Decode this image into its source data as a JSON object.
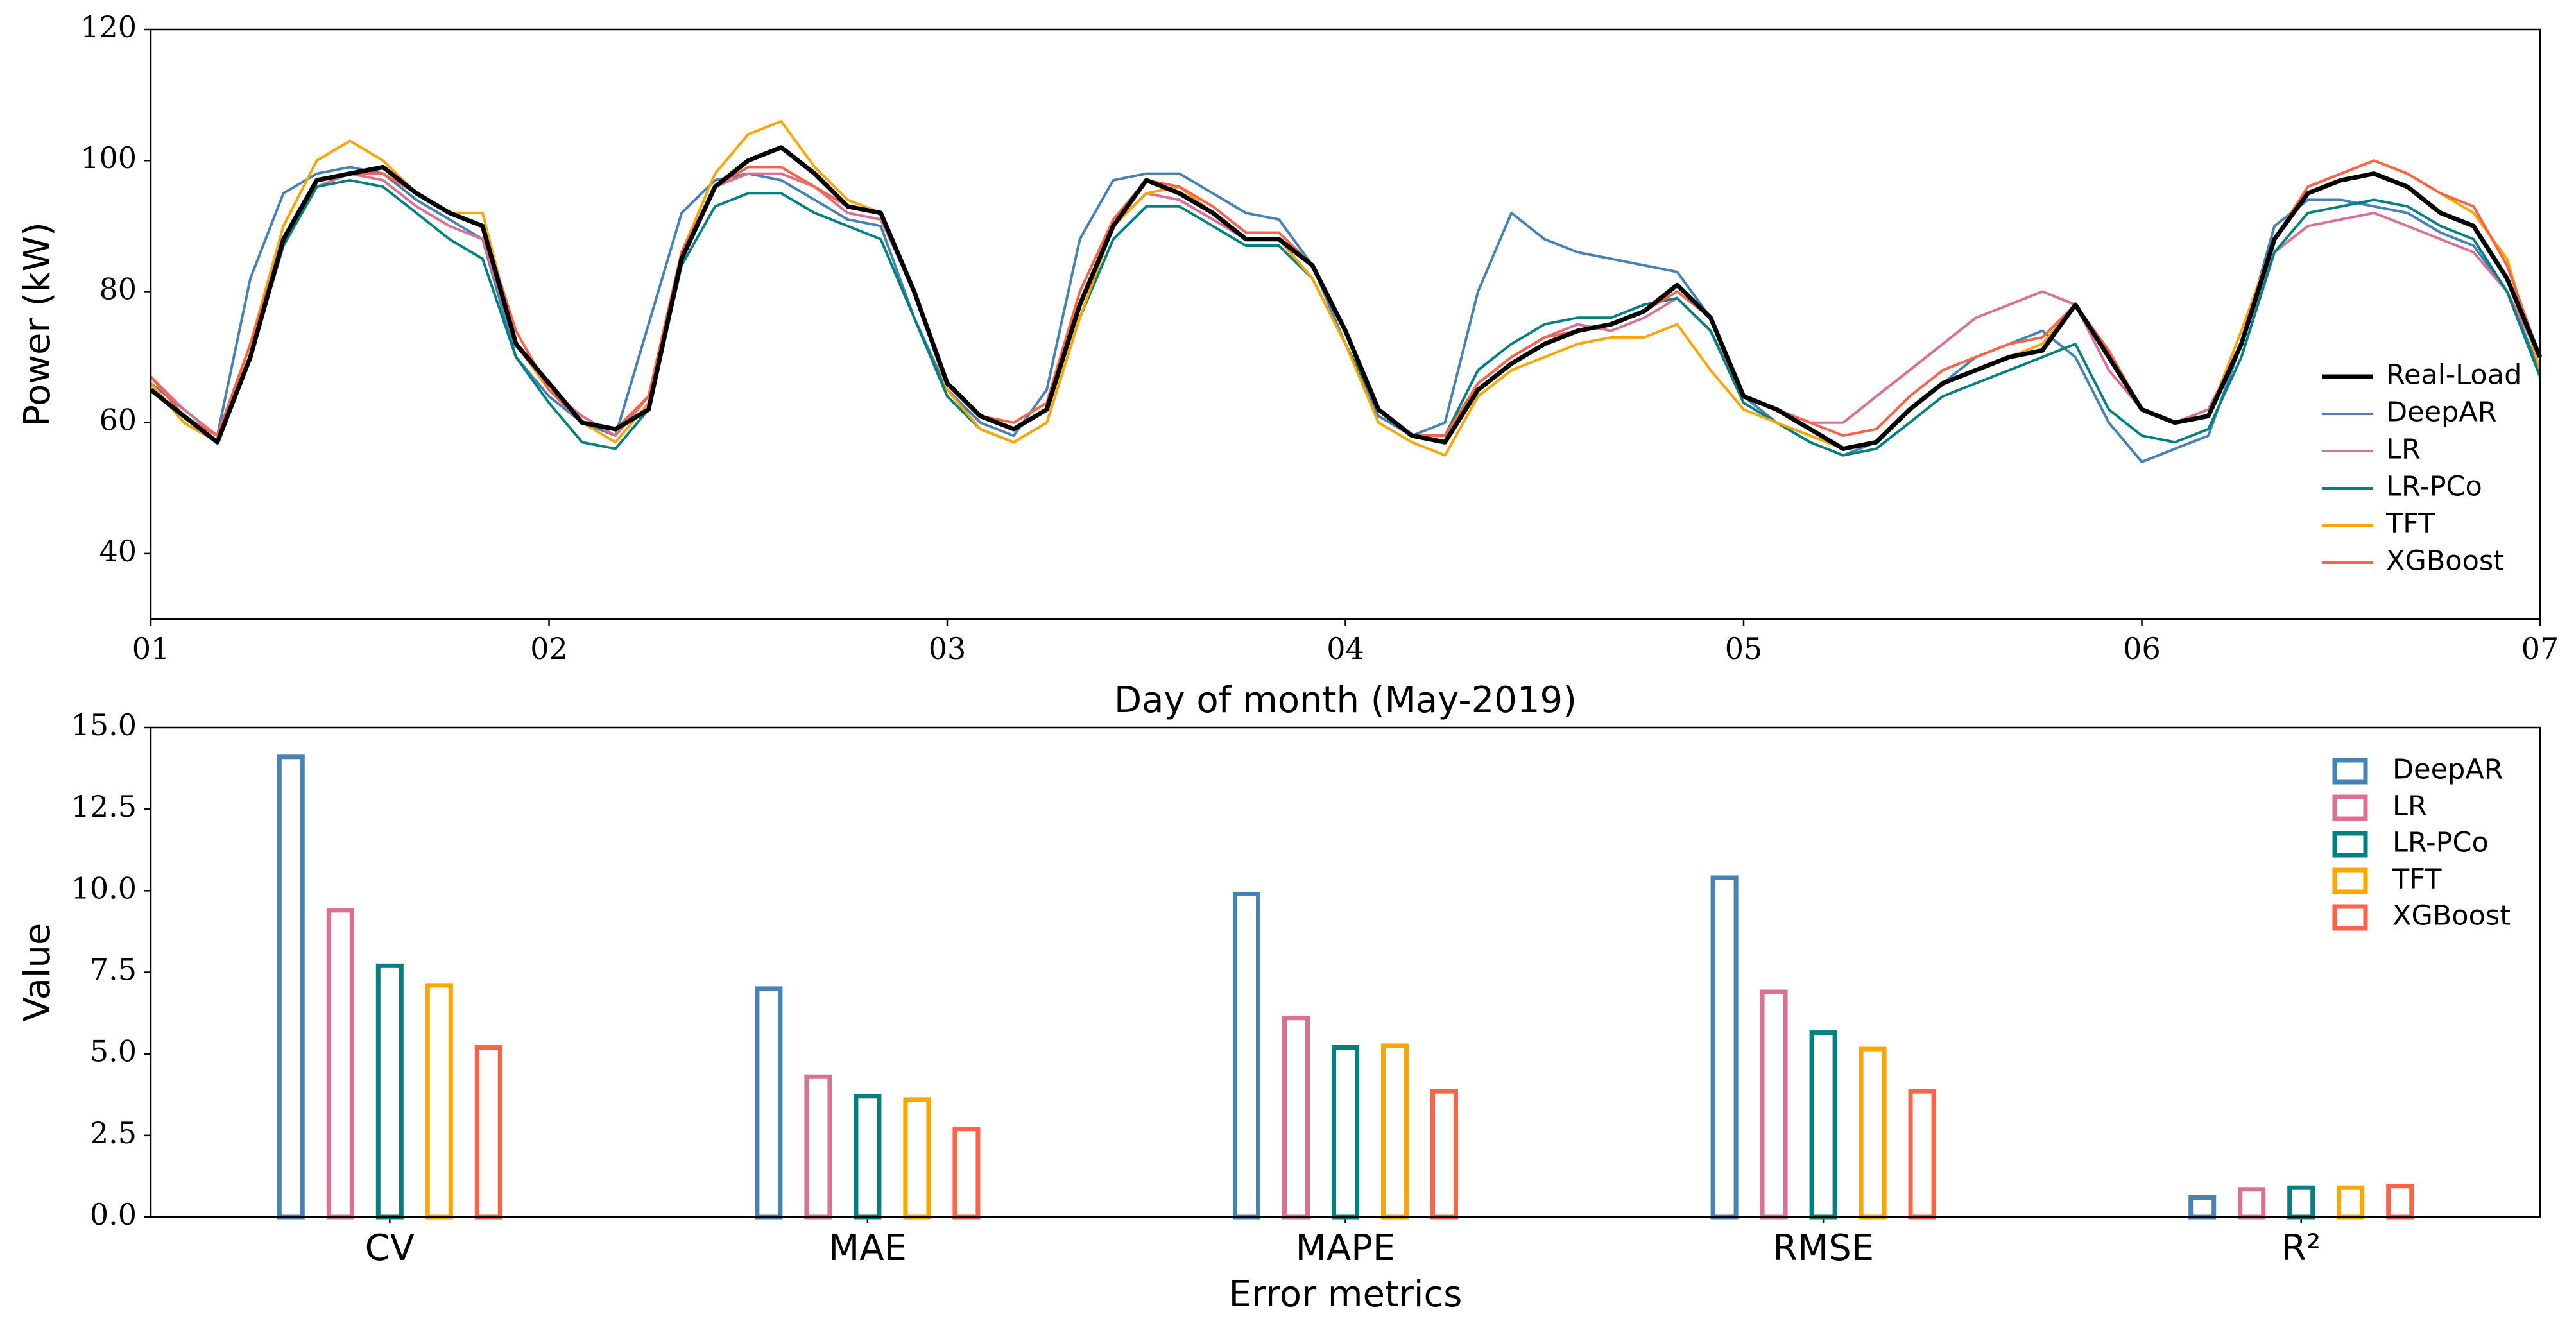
{
  "chart_data": [
    {
      "type": "line",
      "x_label": "Day of month (May-2019)",
      "y_label": "Power (kW)",
      "x": [
        1,
        1.083,
        1.167,
        1.25,
        1.333,
        1.417,
        1.5,
        1.583,
        1.667,
        1.75,
        1.833,
        1.917,
        2,
        2.083,
        2.167,
        2.25,
        2.333,
        2.417,
        2.5,
        2.583,
        2.667,
        2.75,
        2.833,
        2.917,
        3,
        3.083,
        3.167,
        3.25,
        3.333,
        3.417,
        3.5,
        3.583,
        3.667,
        3.75,
        3.833,
        3.917,
        4,
        4.083,
        4.167,
        4.25,
        4.333,
        4.417,
        4.5,
        4.583,
        4.667,
        4.75,
        4.833,
        4.917,
        5,
        5.083,
        5.167,
        5.25,
        5.333,
        5.417,
        5.5,
        5.583,
        5.667,
        5.75,
        5.833,
        5.917,
        6,
        6.083,
        6.167,
        6.25,
        6.333,
        6.417,
        6.5,
        6.583,
        6.667,
        6.75,
        6.833,
        6.917,
        7
      ],
      "series": [
        {
          "name": "Real-Load",
          "color": "#000000",
          "values": [
            65,
            61,
            57,
            70,
            88,
            97,
            98,
            99,
            95,
            92,
            90,
            72,
            66,
            60,
            59,
            62,
            85,
            96,
            100,
            102,
            98,
            93,
            92,
            80,
            66,
            61,
            59,
            62,
            78,
            90,
            97,
            95,
            92,
            88,
            88,
            84,
            74,
            62,
            58,
            57,
            65,
            69,
            72,
            74,
            75,
            77,
            81,
            76,
            64,
            62,
            59,
            56,
            57,
            62,
            66,
            68,
            70,
            71,
            78,
            70,
            62,
            60,
            61,
            72,
            88,
            95,
            97,
            98,
            96,
            92,
            90,
            82,
            70
          ]
        },
        {
          "name": "DeepAR",
          "color": "#4682b4",
          "values": [
            66,
            62,
            58,
            82,
            95,
            98,
            99,
            98,
            94,
            91,
            88,
            70,
            64,
            60,
            58,
            75,
            92,
            97,
            98,
            97,
            94,
            91,
            90,
            76,
            65,
            60,
            58,
            65,
            88,
            97,
            98,
            98,
            95,
            92,
            91,
            84,
            72,
            61,
            58,
            60,
            80,
            92,
            88,
            86,
            85,
            84,
            83,
            76,
            64,
            60,
            57,
            55,
            57,
            62,
            66,
            70,
            72,
            74,
            70,
            60,
            54,
            56,
            58,
            72,
            90,
            94,
            94,
            93,
            92,
            89,
            87,
            80,
            68
          ]
        },
        {
          "name": "LR",
          "color": "#db7093",
          "values": [
            67,
            62,
            58,
            70,
            87,
            96,
            98,
            97,
            93,
            90,
            88,
            72,
            65,
            61,
            58,
            64,
            86,
            96,
            98,
            98,
            96,
            92,
            91,
            80,
            66,
            61,
            59,
            62,
            78,
            90,
            95,
            94,
            91,
            88,
            88,
            82,
            72,
            62,
            58,
            58,
            66,
            70,
            73,
            75,
            74,
            76,
            79,
            74,
            64,
            62,
            60,
            60,
            64,
            68,
            72,
            76,
            78,
            80,
            78,
            68,
            62,
            60,
            62,
            72,
            86,
            90,
            91,
            92,
            90,
            88,
            86,
            80,
            70
          ]
        },
        {
          "name": "LR-PCo",
          "color": "#008080",
          "values": [
            66,
            60,
            57,
            70,
            87,
            96,
            97,
            96,
            92,
            88,
            85,
            70,
            63,
            57,
            56,
            62,
            84,
            93,
            95,
            95,
            92,
            90,
            88,
            76,
            64,
            59,
            57,
            60,
            76,
            88,
            93,
            93,
            90,
            87,
            87,
            82,
            72,
            62,
            58,
            58,
            68,
            72,
            75,
            76,
            76,
            78,
            79,
            74,
            63,
            60,
            57,
            55,
            56,
            60,
            64,
            66,
            68,
            70,
            72,
            62,
            58,
            57,
            59,
            70,
            86,
            92,
            93,
            94,
            93,
            90,
            88,
            80,
            67
          ]
        },
        {
          "name": "TFT",
          "color": "#ffa500",
          "values": [
            66,
            60,
            57,
            72,
            90,
            100,
            103,
            100,
            95,
            92,
            92,
            72,
            65,
            60,
            57,
            63,
            86,
            98,
            104,
            106,
            99,
            94,
            92,
            80,
            65,
            59,
            57,
            60,
            76,
            90,
            95,
            96,
            92,
            88,
            88,
            82,
            72,
            60,
            57,
            55,
            64,
            68,
            70,
            72,
            73,
            73,
            75,
            68,
            62,
            60,
            58,
            56,
            57,
            62,
            66,
            68,
            70,
            72,
            78,
            70,
            62,
            60,
            61,
            74,
            88,
            96,
            98,
            100,
            98,
            95,
            92,
            85,
            68
          ]
        },
        {
          "name": "XGBoost",
          "color": "#ff6347",
          "values": [
            67,
            61,
            58,
            72,
            88,
            97,
            98,
            98,
            95,
            92,
            90,
            74,
            65,
            60,
            59,
            64,
            86,
            96,
            99,
            99,
            96,
            93,
            92,
            80,
            66,
            61,
            60,
            63,
            80,
            91,
            97,
            96,
            93,
            89,
            89,
            84,
            74,
            62,
            58,
            58,
            66,
            70,
            73,
            74,
            75,
            77,
            80,
            76,
            64,
            62,
            60,
            58,
            59,
            64,
            68,
            70,
            72,
            73,
            78,
            71,
            62,
            60,
            61,
            72,
            88,
            96,
            98,
            100,
            98,
            95,
            93,
            84,
            70
          ]
        }
      ],
      "xlim": [
        1,
        7
      ],
      "xticks": [
        {
          "value": 1,
          "label": "01"
        },
        {
          "value": 2,
          "label": "02"
        },
        {
          "value": 3,
          "label": "03"
        },
        {
          "value": 4,
          "label": "04"
        },
        {
          "value": 5,
          "label": "05"
        },
        {
          "value": 6,
          "label": "06"
        },
        {
          "value": 7,
          "label": "07"
        }
      ],
      "ylim": [
        30,
        120
      ],
      "yticks": [
        40,
        60,
        80,
        100,
        120
      ],
      "legend": "lower right"
    },
    {
      "type": "bar",
      "x_label": "Error metrics",
      "y_label": "Value",
      "categories": [
        "CV",
        "MAE",
        "MAPE",
        "RMSE",
        "R²"
      ],
      "series": [
        {
          "name": "DeepAR",
          "color": "#4682b4",
          "values": [
            14.1,
            7.0,
            9.9,
            10.4,
            0.6
          ]
        },
        {
          "name": "LR",
          "color": "#db7093",
          "values": [
            9.4,
            4.3,
            6.1,
            6.9,
            0.85
          ]
        },
        {
          "name": "LR-PCo",
          "color": "#008080",
          "values": [
            7.7,
            3.7,
            5.2,
            5.65,
            0.9
          ]
        },
        {
          "name": "TFT",
          "color": "#ffa500",
          "values": [
            7.1,
            3.6,
            5.25,
            5.15,
            0.9
          ]
        },
        {
          "name": "XGBoost",
          "color": "#ff6347",
          "values": [
            5.2,
            2.7,
            3.85,
            3.85,
            0.95
          ]
        }
      ],
      "ylim": [
        0,
        15
      ],
      "yticks": [
        {
          "value": 0,
          "label": "0.0"
        },
        {
          "value": 2.5,
          "label": "2.5"
        },
        {
          "value": 5,
          "label": "5.0"
        },
        {
          "value": 7.5,
          "label": "7.5"
        },
        {
          "value": 10,
          "label": "10.0"
        },
        {
          "value": 12.5,
          "label": "12.5"
        },
        {
          "value": 15,
          "label": "15.0"
        }
      ],
      "legend": "upper right"
    }
  ]
}
